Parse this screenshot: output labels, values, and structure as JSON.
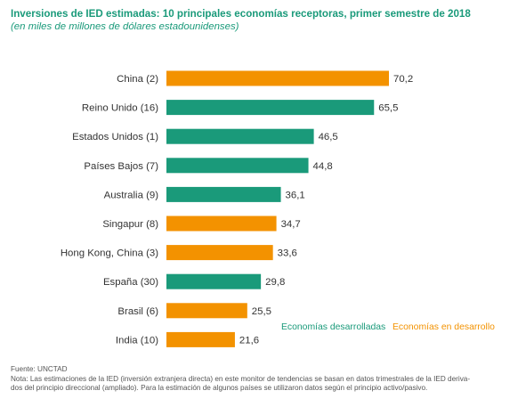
{
  "title": "Inversiones de IED estimadas: 10 principales economías receptoras, primer semestre de 2018",
  "subtitle": "(en miles de millones de dólares estadounidenses)",
  "colors": {
    "desarrolladas": "#1a9a7a",
    "en_desarrollo": "#f39200"
  },
  "chart_data": {
    "type": "bar",
    "orientation": "horizontal",
    "categories": [
      "China (2)",
      "Reino Unido (16)",
      "Estados Unidos (1)",
      "Países Bajos (7)",
      "Australia (9)",
      "Singapur (8)",
      "Hong Kong, China (3)",
      "España (30)",
      "Brasil (6)",
      "India (10)"
    ],
    "values": [
      70.2,
      65.5,
      46.5,
      44.8,
      36.1,
      34.7,
      33.6,
      29.8,
      25.5,
      21.6
    ],
    "value_labels": [
      "70,2",
      "65,5",
      "46,5",
      "44,8",
      "36,1",
      "34,7",
      "33,6",
      "29,8",
      "25,5",
      "21,6"
    ],
    "groups": [
      "en_desarrollo",
      "desarrolladas",
      "desarrolladas",
      "desarrolladas",
      "desarrolladas",
      "en_desarrollo",
      "en_desarrollo",
      "desarrolladas",
      "en_desarrollo",
      "en_desarrollo"
    ],
    "legend": [
      {
        "key": "desarrolladas",
        "label": "Economías desarrolladas"
      },
      {
        "key": "en_desarrollo",
        "label": "Economías en desarrollo"
      }
    ],
    "legend_position": "bottom-right",
    "xlim": [
      0,
      70.2
    ],
    "grid": false
  },
  "footer": {
    "source": "Fuente: UNCTAD",
    "note_line1": "Nota: Las estimaciones de la IED (inversión extranjera directa) en este monitor de tendencias se basan en datos trimestrales de la IED deriva-",
    "note_line2": "dos del principio direccional (ampliado). Para la estimación de algunos países se utilizaron datos según el principio activo/pasivo."
  }
}
